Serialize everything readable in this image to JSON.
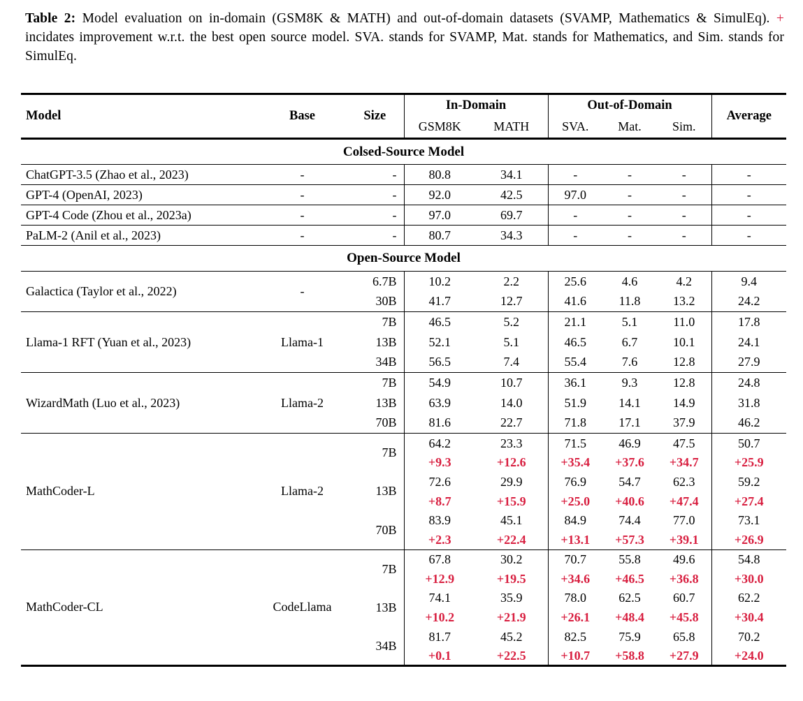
{
  "colors": {
    "accent_red": "#d81e3f"
  },
  "caption": {
    "label": "Table 2:",
    "before_plus": "Model evaluation on in-domain (GSM8K & MATH) and out-of-domain datasets (SVAMP, Mathematics & SimulEq).",
    "plus": "+",
    "after_plus": "incidates improvement w.r.t. the best open source model. SVA. stands for SVAMP, Mat. stands for Mathematics, and Sim. stands for SimulEq."
  },
  "header": {
    "model": "Model",
    "base": "Base",
    "size": "Size",
    "in_domain": "In-Domain",
    "out_of_domain": "Out-of-Domain",
    "average": "Average",
    "sub": [
      "GSM8K",
      "MATH",
      "SVA.",
      "Mat.",
      "Sim."
    ]
  },
  "sections": [
    {
      "title": "Colsed-Source Model",
      "groups": [
        {
          "model": "ChatGPT-3.5 (Zhao et al., 2023)",
          "base": "-",
          "rows": [
            {
              "size": "-",
              "values": [
                "80.8",
                "34.1",
                "-",
                "-",
                "-",
                "-"
              ]
            }
          ]
        },
        {
          "model": "GPT-4 (OpenAI, 2023)",
          "base": "-",
          "rows": [
            {
              "size": "-",
              "values": [
                "92.0",
                "42.5",
                "97.0",
                "-",
                "-",
                "-"
              ]
            }
          ]
        },
        {
          "model": "GPT-4 Code (Zhou et al., 2023a)",
          "base": "-",
          "rows": [
            {
              "size": "-",
              "values": [
                "97.0",
                "69.7",
                "-",
                "-",
                "-",
                "-"
              ]
            }
          ]
        },
        {
          "model": "PaLM-2 (Anil et al., 2023)",
          "base": "-",
          "rows": [
            {
              "size": "-",
              "values": [
                "80.7",
                "34.3",
                "-",
                "-",
                "-",
                "-"
              ]
            }
          ]
        }
      ]
    },
    {
      "title": "Open-Source Model",
      "groups": [
        {
          "model": "Galactica (Taylor et al., 2022)",
          "base": "-",
          "rows": [
            {
              "size": "6.7B",
              "values": [
                "10.2",
                "2.2",
                "25.6",
                "4.6",
                "4.2",
                "9.4"
              ]
            },
            {
              "size": "30B",
              "values": [
                "41.7",
                "12.7",
                "41.6",
                "11.8",
                "13.2",
                "24.2"
              ]
            }
          ]
        },
        {
          "model": "Llama-1 RFT (Yuan et al., 2023)",
          "base": "Llama-1",
          "rows": [
            {
              "size": "7B",
              "values": [
                "46.5",
                "5.2",
                "21.1",
                "5.1",
                "11.0",
                "17.8"
              ]
            },
            {
              "size": "13B",
              "values": [
                "52.1",
                "5.1",
                "46.5",
                "6.7",
                "10.1",
                "24.1"
              ]
            },
            {
              "size": "34B",
              "values": [
                "56.5",
                "7.4",
                "55.4",
                "7.6",
                "12.8",
                "27.9"
              ]
            }
          ]
        },
        {
          "model": "WizardMath (Luo et al., 2023)",
          "base": "Llama-2",
          "rows": [
            {
              "size": "7B",
              "values": [
                "54.9",
                "10.7",
                "36.1",
                "9.3",
                "12.8",
                "24.8"
              ]
            },
            {
              "size": "13B",
              "values": [
                "63.9",
                "14.0",
                "51.9",
                "14.1",
                "14.9",
                "31.8"
              ]
            },
            {
              "size": "70B",
              "values": [
                "81.6",
                "22.7",
                "71.8",
                "17.1",
                "37.9",
                "46.2"
              ]
            }
          ]
        },
        {
          "model": "MathCoder-L",
          "base": "Llama-2",
          "rows": [
            {
              "size": "7B",
              "values": [
                "64.2",
                "23.3",
                "71.5",
                "46.9",
                "47.5",
                "50.7"
              ],
              "delta": [
                "+9.3",
                "+12.6",
                "+35.4",
                "+37.6",
                "+34.7",
                "+25.9"
              ]
            },
            {
              "size": "13B",
              "values": [
                "72.6",
                "29.9",
                "76.9",
                "54.7",
                "62.3",
                "59.2"
              ],
              "delta": [
                "+8.7",
                "+15.9",
                "+25.0",
                "+40.6",
                "+47.4",
                "+27.4"
              ]
            },
            {
              "size": "70B",
              "values": [
                "83.9",
                "45.1",
                "84.9",
                "74.4",
                "77.0",
                "73.1"
              ],
              "delta": [
                "+2.3",
                "+22.4",
                "+13.1",
                "+57.3",
                "+39.1",
                "+26.9"
              ]
            }
          ]
        },
        {
          "model": "MathCoder-CL",
          "base": "CodeLlama",
          "rows": [
            {
              "size": "7B",
              "values": [
                "67.8",
                "30.2",
                "70.7",
                "55.8",
                "49.6",
                "54.8"
              ],
              "delta": [
                "+12.9",
                "+19.5",
                "+34.6",
                "+46.5",
                "+36.8",
                "+30.0"
              ]
            },
            {
              "size": "13B",
              "values": [
                "74.1",
                "35.9",
                "78.0",
                "62.5",
                "60.7",
                "62.2"
              ],
              "delta": [
                "+10.2",
                "+21.9",
                "+26.1",
                "+48.4",
                "+45.8",
                "+30.4"
              ]
            },
            {
              "size": "34B",
              "values": [
                "81.7",
                "45.2",
                "82.5",
                "75.9",
                "65.8",
                "70.2"
              ],
              "delta": [
                "+0.1",
                "+22.5",
                "+10.7",
                "+58.8",
                "+27.9",
                "+24.0"
              ]
            }
          ]
        }
      ]
    }
  ]
}
